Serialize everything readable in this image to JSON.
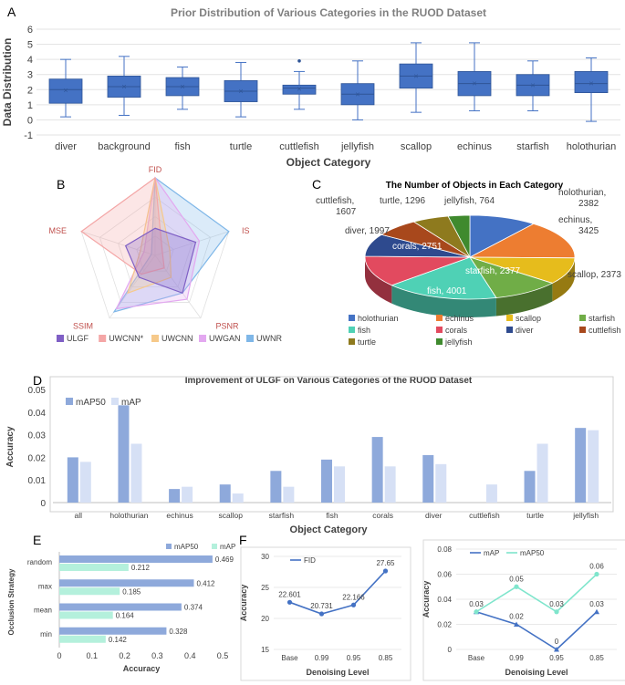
{
  "panel_labels": [
    "A",
    "B",
    "C",
    "D",
    "E",
    "F"
  ],
  "chart_data": [
    {
      "id": "A",
      "type": "box",
      "title": "Prior Distribution of Various Categories in the RUOD Dataset",
      "xlabel": "Object Category",
      "ylabel": "Data Distribution",
      "ylim": [
        -1,
        6
      ],
      "yticks": [
        -1,
        0,
        1,
        2,
        3,
        4,
        5,
        6
      ],
      "categories": [
        "diver",
        "background",
        "fish",
        "turtle",
        "cuttlefish",
        "jellyfish",
        "scallop",
        "echinus",
        "starfish",
        "holothurian"
      ],
      "boxes": [
        {
          "min": 0.2,
          "q1": 1.1,
          "median": 2.0,
          "q3": 2.7,
          "max": 4.0,
          "mean": 1.95,
          "outliers": []
        },
        {
          "min": 0.3,
          "q1": 1.5,
          "median": 2.2,
          "q3": 2.9,
          "max": 4.2,
          "mean": 2.2,
          "outliers": []
        },
        {
          "min": 0.7,
          "q1": 1.6,
          "median": 2.2,
          "q3": 2.8,
          "max": 3.5,
          "mean": 2.2,
          "outliers": []
        },
        {
          "min": 0.2,
          "q1": 1.2,
          "median": 1.9,
          "q3": 2.6,
          "max": 3.8,
          "mean": 1.9,
          "outliers": []
        },
        {
          "min": 0.7,
          "q1": 1.7,
          "median": 2.1,
          "q3": 2.3,
          "max": 3.2,
          "mean": 2.05,
          "outliers": [
            3.9
          ]
        },
        {
          "min": 0.0,
          "q1": 1.0,
          "median": 1.7,
          "q3": 2.4,
          "max": 3.9,
          "mean": 1.7,
          "outliers": []
        },
        {
          "min": 0.5,
          "q1": 2.1,
          "median": 2.9,
          "q3": 3.7,
          "max": 5.1,
          "mean": 2.9,
          "outliers": []
        },
        {
          "min": 0.6,
          "q1": 1.6,
          "median": 2.4,
          "q3": 3.2,
          "max": 5.1,
          "mean": 2.4,
          "outliers": []
        },
        {
          "min": 0.6,
          "q1": 1.6,
          "median": 2.3,
          "q3": 3.0,
          "max": 3.9,
          "mean": 2.3,
          "outliers": []
        },
        {
          "min": -0.1,
          "q1": 1.8,
          "median": 2.4,
          "q3": 3.2,
          "max": 4.1,
          "mean": 2.4,
          "outliers": []
        }
      ],
      "color": "#4472C4"
    },
    {
      "id": "B",
      "type": "radar",
      "axes": [
        "FID",
        "IS",
        "PSNR",
        "SSIM",
        "MSE"
      ],
      "series": [
        {
          "name": "ULGF",
          "color": "#7F5FC5",
          "values": [
            0.35,
            0.55,
            0.6,
            0.35,
            0.4
          ]
        },
        {
          "name": "UWCNN*",
          "color": "#F4A6A6",
          "values": [
            1.0,
            0.1,
            0.2,
            0.3,
            1.0
          ]
        },
        {
          "name": "UWCNN",
          "color": "#F6C98A",
          "values": [
            1.0,
            0.2,
            0.35,
            0.6,
            0.2
          ]
        },
        {
          "name": "UWGAN",
          "color": "#E3A8F0",
          "values": [
            1.0,
            0.6,
            0.7,
            0.85,
            0.15
          ]
        },
        {
          "name": "UWNR",
          "color": "#7FB7E8",
          "values": [
            1.0,
            1.0,
            0.6,
            0.9,
            0.05
          ]
        }
      ]
    },
    {
      "id": "C",
      "type": "pie",
      "title": "The Number of Objects in Each Category",
      "slices": [
        {
          "label": "holothurian",
          "value": 2382,
          "color": "#4472C4",
          "text": "holothurian,\n2382"
        },
        {
          "label": "echinus",
          "value": 3425,
          "color": "#ED7D31",
          "text": "echinus,\n3425"
        },
        {
          "label": "scallop",
          "value": 2373,
          "color": "#E6BC1C",
          "text": "scallop, 2373"
        },
        {
          "label": "starfish",
          "value": 2377,
          "color": "#70AD47",
          "text": "starfish, 2377"
        },
        {
          "label": "fish",
          "value": 4001,
          "color": "#4FD1B5",
          "text": "fish, 4001"
        },
        {
          "label": "corals",
          "value": 2751,
          "color": "#E24A5F",
          "text": "corals, 2751"
        },
        {
          "label": "diver",
          "value": 1997,
          "color": "#2E4A8E",
          "text": "diver, 1997"
        },
        {
          "label": "cuttlefish",
          "value": 1607,
          "color": "#A8481C",
          "text": "cuttlefish,\n1607"
        },
        {
          "label": "turtle",
          "value": 1296,
          "color": "#8E7A1E",
          "text": "turtle, 1296"
        },
        {
          "label": "jellyfish",
          "value": 764,
          "color": "#3F8A2E",
          "text": "jellyfish, 764"
        }
      ]
    },
    {
      "id": "D",
      "type": "bar",
      "title": "Improvement of ULGF on Various Categories of the RUOD Dataset",
      "xlabel": "Object Category",
      "ylabel": "Accuracy",
      "ylim": [
        0,
        0.05
      ],
      "yticks": [
        0,
        0.01,
        0.02,
        0.03,
        0.04,
        0.05
      ],
      "categories": [
        "all",
        "holothurian",
        "echinus",
        "scallop",
        "starfish",
        "fish",
        "corals",
        "diver",
        "cuttlefish",
        "turtle",
        "jellyfish"
      ],
      "series": [
        {
          "name": "mAP50",
          "color": "#8EA9DB",
          "values": [
            0.02,
            0.043,
            0.006,
            0.008,
            0.014,
            0.019,
            0.029,
            0.021,
            0.0,
            0.014,
            0.033
          ]
        },
        {
          "name": "mAP",
          "color": "#D6E0F5",
          "values": [
            0.018,
            0.026,
            0.007,
            0.004,
            0.007,
            0.016,
            0.016,
            0.017,
            0.008,
            0.026,
            0.032
          ]
        }
      ]
    },
    {
      "id": "E",
      "type": "barh",
      "xlabel": "Accuracy",
      "ylabel": "Occlusion Strategy",
      "xlim": [
        0,
        0.5
      ],
      "xticks": [
        0,
        0.1,
        0.2,
        0.3,
        0.4,
        0.5
      ],
      "categories": [
        "random",
        "max",
        "mean",
        "min"
      ],
      "series": [
        {
          "name": "mAP50",
          "color": "#8EA9DB",
          "values": [
            0.469,
            0.412,
            0.374,
            0.328
          ]
        },
        {
          "name": "mAP",
          "color": "#B4F0DC",
          "values": [
            0.212,
            0.185,
            0.164,
            0.142
          ]
        }
      ]
    },
    {
      "id": "F1",
      "type": "line",
      "xlabel": "Denoising Level",
      "ylabel": "Accuracy",
      "ylim": [
        15,
        30
      ],
      "yticks": [
        15,
        20,
        25,
        30
      ],
      "x": [
        "Base",
        "0.99",
        "0.95",
        "0.85"
      ],
      "series": [
        {
          "name": "FID",
          "color": "#4472C4",
          "values": [
            22.601,
            20.731,
            22.166,
            27.65
          ],
          "labels": [
            "22.601",
            "20.731",
            "22.166",
            "27.65"
          ]
        }
      ]
    },
    {
      "id": "F2",
      "type": "line",
      "xlabel": "Denoising Level",
      "ylabel": "Accuracy",
      "ylim": [
        0,
        0.08
      ],
      "yticks": [
        0,
        0.02,
        0.04,
        0.06,
        0.08
      ],
      "x": [
        "Base",
        "0.99",
        "0.95",
        "0.85"
      ],
      "series": [
        {
          "name": "mAP",
          "color": "#4472C4",
          "values": [
            0.03,
            0.02,
            0.0,
            0.03
          ],
          "labels": [
            "0.03",
            "0.02",
            "0",
            "0.03"
          ]
        },
        {
          "name": "mAP50",
          "color": "#7FE5CC",
          "values": [
            0.03,
            0.05,
            0.03,
            0.06
          ],
          "labels": [
            "",
            "0.05",
            "0.03",
            "0.06"
          ]
        }
      ]
    }
  ]
}
